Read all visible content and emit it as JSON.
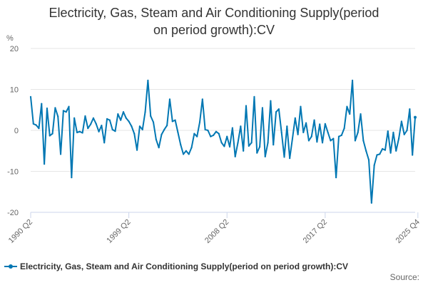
{
  "colors": {
    "series": "#0077b3",
    "grid": "#e6e6e6",
    "axis": "#ccd6eb",
    "text": "#333333"
  },
  "legend": {
    "label": "Electricity, Gas, Steam and Air Conditioning Supply(period on period growth):CV"
  },
  "source": {
    "label": "Source:"
  },
  "chart_data": {
    "type": "line",
    "title_lines": [
      "Electricity, Gas, Steam and Air Conditioning Supply(period",
      "on period growth):CV"
    ],
    "ylabel": "%",
    "ylim": [
      -20,
      20
    ],
    "yticks": [
      20,
      10,
      0,
      -10,
      -20
    ],
    "xtick_labels": [
      "1990 Q2",
      "1999 Q2",
      "2008 Q2",
      "2017 Q2",
      "2025 Q4"
    ],
    "xtick_index": [
      0,
      36,
      72,
      108,
      142
    ],
    "x_start": "1990 Q2",
    "x_end": "2025 Q4",
    "series": [
      {
        "name": "Electricity, Gas, Steam and Air Conditioning Supply(period on period growth):CV",
        "values": [
          8.2,
          1.6,
          1.3,
          0.5,
          6.5,
          -8.2,
          5.4,
          -1.3,
          -0.8,
          5.5,
          3.4,
          -5.8,
          4.8,
          4.5,
          5.8,
          -11.5,
          3.0,
          -0.5,
          -0.3,
          -0.6,
          3.5,
          0.5,
          1.5,
          3.0,
          1.6,
          -0.3,
          1.2,
          -3.0,
          2.8,
          2.5,
          0.2,
          -0.2,
          4.0,
          2.5,
          4.5,
          3.0,
          2.2,
          1.0,
          -0.8,
          -4.8,
          1.0,
          0.2,
          4.5,
          12.2,
          3.5,
          2.0,
          -2.2,
          -4.2,
          -1.0,
          0.2,
          1.2,
          7.6,
          2.2,
          2.5,
          -0.5,
          -3.5,
          -5.8,
          -5.0,
          -5.8,
          -4.2,
          -0.8,
          -1.5,
          2.0,
          7.6,
          0.2,
          0.0,
          -1.5,
          -1.2,
          -0.3,
          -0.8,
          -3.0,
          -3.9,
          -1.5,
          -4.0,
          0.6,
          -6.4,
          -3.0,
          1.0,
          -5.0,
          6.0,
          -3.8,
          -3.0,
          8.2,
          -5.5,
          -4.0,
          5.5,
          -6.4,
          -3.0,
          7.2,
          -3.5,
          4.5,
          5.2,
          -0.5,
          -6.5,
          1.0,
          -6.8,
          -2.0,
          3.0,
          -1.0,
          5.8,
          -0.5,
          1.8,
          -2.5,
          -1.5,
          2.5,
          -2.8,
          1.5,
          -3.0,
          1.6,
          -0.5,
          -2.5,
          -2.0,
          -11.5,
          -1.5,
          -1.2,
          0.5,
          5.8,
          4.0,
          12.2,
          -2.5,
          -0.5,
          4.0,
          -2.5,
          -5.0,
          -7.2,
          -17.7,
          -8.5,
          -6.0,
          -5.8,
          -4.5,
          -4.8,
          -0.2,
          -5.5,
          -0.5,
          -5.0,
          -2.0,
          2.2,
          -1.0,
          0.0,
          5.2,
          -6.0,
          3.2
        ]
      }
    ]
  }
}
